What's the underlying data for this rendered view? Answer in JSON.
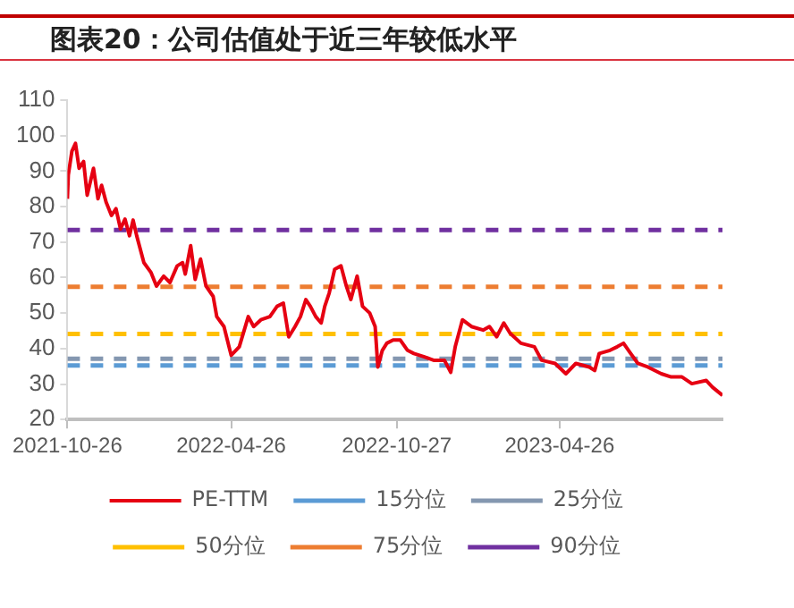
{
  "chart_data": {
    "type": "line",
    "title": "图表20：公司估值处于近三年较低水平",
    "xlim": [
      "2021-10-26",
      "2023-10-24"
    ],
    "xticks": [
      "2021-10-26",
      "2022-04-26",
      "2022-10-27",
      "2023-04-26"
    ],
    "ylim": [
      20,
      110
    ],
    "yticks": [
      20,
      30,
      40,
      50,
      60,
      70,
      80,
      90,
      100,
      110
    ],
    "legend": "bottom",
    "marker": "none",
    "series": [
      {
        "name": "PE-TTM",
        "color": "#e60012",
        "line_style": "solid",
        "x": [
          "2021-10-26",
          "2021-10-27",
          "2021-10-31",
          "2021-11-04",
          "2021-11-08",
          "2021-11-13",
          "2021-11-17",
          "2021-11-24",
          "2021-11-29",
          "2021-12-03",
          "2021-12-08",
          "2021-12-14",
          "2021-12-19",
          "2021-12-24",
          "2021-12-29",
          "2022-01-03",
          "2022-01-07",
          "2022-01-11",
          "2022-01-19",
          "2022-01-27",
          "2022-02-02",
          "2022-02-10",
          "2022-02-17",
          "2022-02-25",
          "2022-03-03",
          "2022-03-06",
          "2022-03-12",
          "2022-03-17",
          "2022-03-23",
          "2022-03-29",
          "2022-04-06",
          "2022-04-10",
          "2022-04-18",
          "2022-04-26",
          "2022-05-05",
          "2022-05-15",
          "2022-05-21",
          "2022-05-29",
          "2022-06-08",
          "2022-06-16",
          "2022-06-23",
          "2022-06-29",
          "2022-07-06",
          "2022-07-12",
          "2022-07-18",
          "2022-07-23",
          "2022-07-29",
          "2022-08-04",
          "2022-08-08",
          "2022-08-13",
          "2022-08-19",
          "2022-08-26",
          "2022-09-01",
          "2022-09-06",
          "2022-09-13",
          "2022-09-19",
          "2022-09-27",
          "2022-10-03",
          "2022-10-06",
          "2022-10-11",
          "2022-10-16",
          "2022-10-23",
          "2022-10-31",
          "2022-11-08",
          "2022-11-15",
          "2022-11-26",
          "2022-12-07",
          "2022-12-19",
          "2022-12-26",
          "2022-12-31",
          "2023-01-08",
          "2023-01-18",
          "2023-01-31",
          "2023-02-07",
          "2023-02-15",
          "2023-02-23",
          "2023-03-02",
          "2023-03-14",
          "2023-03-29",
          "2023-04-06",
          "2023-04-21",
          "2023-05-03",
          "2023-05-14",
          "2023-05-29",
          "2023-06-04",
          "2023-06-09",
          "2023-06-21",
          "2023-06-29",
          "2023-07-06",
          "2023-07-14",
          "2023-07-22",
          "2023-08-02",
          "2023-08-17",
          "2023-08-28",
          "2023-09-09",
          "2023-09-20",
          "2023-10-06",
          "2023-10-13",
          "2023-10-24"
        ],
        "values": [
          82.2,
          88.9,
          95.6,
          97.8,
          90.8,
          92.7,
          83.2,
          90.8,
          82.2,
          86,
          81.3,
          77.5,
          79.4,
          73.7,
          76.5,
          71.8,
          76.2,
          71.8,
          64.2,
          61.4,
          57.6,
          60.4,
          58.6,
          63.3,
          64.2,
          61,
          69,
          59.5,
          65.2,
          57.6,
          54.7,
          49,
          46.2,
          38.1,
          40.5,
          49,
          46.2,
          48.1,
          49,
          51.9,
          52.8,
          43.3,
          46.2,
          49,
          53.8,
          51.9,
          49,
          47.2,
          51.9,
          55.7,
          62.3,
          63.3,
          57.6,
          53.8,
          60.4,
          51.9,
          50,
          46.2,
          34.8,
          39.5,
          41.5,
          42.4,
          42.4,
          39.5,
          38.6,
          37.7,
          36.7,
          36.7,
          33.3,
          40.5,
          48.1,
          46.2,
          45.2,
          46.2,
          43.3,
          47.2,
          44.3,
          41.5,
          40.5,
          36.7,
          35.8,
          32.9,
          35.8,
          34.8,
          33.8,
          38.6,
          39.5,
          40.5,
          41.5,
          38.6,
          35.8,
          34.8,
          32.9,
          32,
          32,
          30.1,
          31,
          29.1,
          26.8
        ]
      },
      {
        "name": "15分位",
        "color": "#5b9bd5",
        "line_style": "dashed",
        "x": [
          "2021-10-26",
          "2023-10-24"
        ],
        "values": [
          35.2,
          35.2
        ]
      },
      {
        "name": "25分位",
        "color": "#8497b0",
        "line_style": "dashed",
        "x": [
          "2021-10-26",
          "2023-10-24"
        ],
        "values": [
          37.1,
          37.1
        ]
      },
      {
        "name": "50分位",
        "color": "#ffc000",
        "line_style": "dashed",
        "x": [
          "2021-10-26",
          "2023-10-24"
        ],
        "values": [
          44.1,
          44.1
        ]
      },
      {
        "name": "75分位",
        "color": "#ed7d31",
        "line_style": "dashed",
        "x": [
          "2021-10-26",
          "2023-10-24"
        ],
        "values": [
          57.4,
          57.4
        ]
      },
      {
        "name": "90分位",
        "color": "#7030a0",
        "line_style": "dashed",
        "x": [
          "2021-10-26",
          "2023-10-24"
        ],
        "values": [
          73.4,
          73.4
        ]
      }
    ]
  }
}
